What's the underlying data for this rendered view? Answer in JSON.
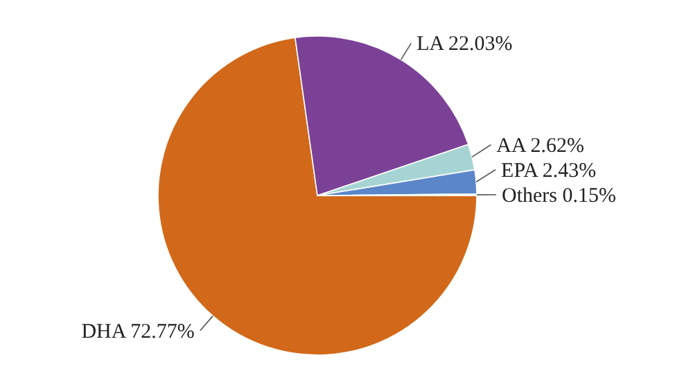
{
  "chart_data": {
    "type": "pie",
    "categories": [
      "DHA 72.77%",
      "LA 22.03%",
      "AA 2.62%",
      "EPA 2.43%",
      "Others 0.15%"
    ],
    "values": [
      72.77,
      22.03,
      2.62,
      2.43,
      0.15
    ],
    "colors": [
      "#d2691a",
      "#7b4197",
      "#a6d4d4",
      "#5b87c9",
      "#e8eef6"
    ]
  }
}
